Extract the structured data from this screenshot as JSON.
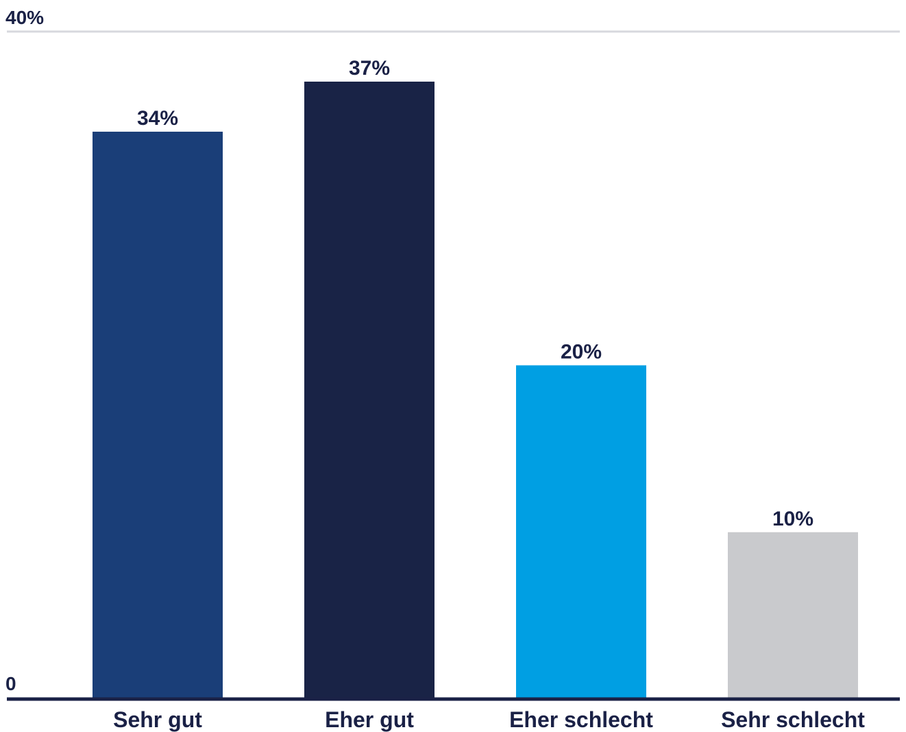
{
  "chart_data": {
    "type": "bar",
    "categories": [
      "Sehr gut",
      "Eher gut",
      "Eher schlecht",
      "Sehr schlecht"
    ],
    "values": [
      34,
      37,
      20,
      10
    ],
    "value_labels": [
      "34%",
      "37%",
      "20%",
      "10%"
    ],
    "ylim": [
      0,
      40
    ],
    "y_tick_labels": [
      "0",
      "40%"
    ],
    "bar_colors": [
      "#1a3e78",
      "#192346",
      "#009fe3",
      "#c9cacd"
    ],
    "text_color": "#1a2146",
    "axis_color": "#1a2146",
    "grid_color": "#d7d8de",
    "grid": true
  }
}
